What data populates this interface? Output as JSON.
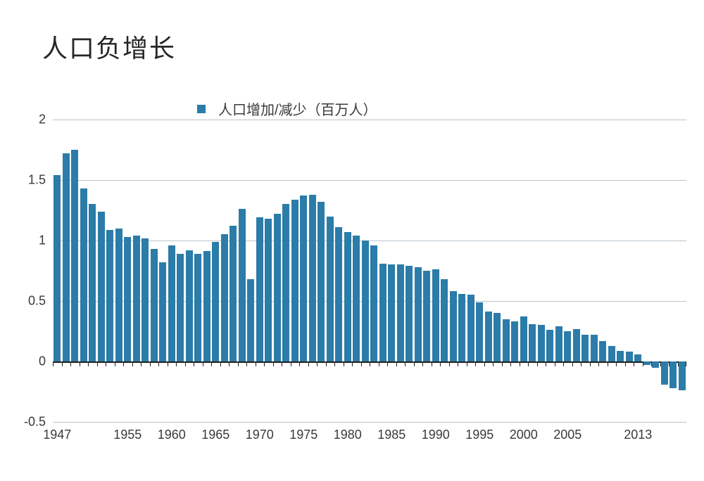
{
  "title": "人口负增长",
  "legend_label": "人口增加/减少（百万人）",
  "chart": {
    "type": "bar",
    "bar_color": "#2b7ca8",
    "grid_color": "#b9c5cc",
    "zero_line_color": "#222222",
    "title_color": "#262626",
    "text_color": "#3a3a3a",
    "background_color": "#ffffff",
    "title_fontsize": 36,
    "label_fontsize": 20,
    "tick_fontsize": 18,
    "bar_gap_ratio": 0.18,
    "ylim": [
      -0.5,
      2.0
    ],
    "ytick_step": 0.5,
    "y_ticks": [
      -0.5,
      0,
      0.5,
      1,
      1.5,
      2
    ],
    "x_first_year": 1947,
    "x_tick_labels": [
      "1947",
      "1955",
      "1960",
      "1965",
      "1970",
      "1975",
      "1980",
      "1985",
      "1990",
      "1995",
      "2000",
      "2005",
      "2013"
    ],
    "x_tick_years": [
      1947,
      1955,
      1960,
      1965,
      1970,
      1975,
      1980,
      1985,
      1990,
      1995,
      2000,
      2005,
      2013
    ],
    "values": [
      1.54,
      1.72,
      1.75,
      1.43,
      1.3,
      1.24,
      1.09,
      1.1,
      1.03,
      1.04,
      1.02,
      0.93,
      0.82,
      0.96,
      0.89,
      0.92,
      0.89,
      0.91,
      0.99,
      1.05,
      1.12,
      1.26,
      0.68,
      1.19,
      1.18,
      1.22,
      1.3,
      1.34,
      1.37,
      1.38,
      1.32,
      1.2,
      1.11,
      1.07,
      1.04,
      1.0,
      0.96,
      0.81,
      0.8,
      0.8,
      0.79,
      0.78,
      0.75,
      0.76,
      0.68,
      0.58,
      0.56,
      0.55,
      0.49,
      0.41,
      0.4,
      0.35,
      0.33,
      0.37,
      0.31,
      0.3,
      0.26,
      0.29,
      0.25,
      0.27,
      0.22,
      0.22,
      0.17,
      0.13,
      0.09,
      0.08,
      0.06,
      -0.03,
      -0.05,
      -0.19,
      -0.22,
      -0.24
    ]
  }
}
